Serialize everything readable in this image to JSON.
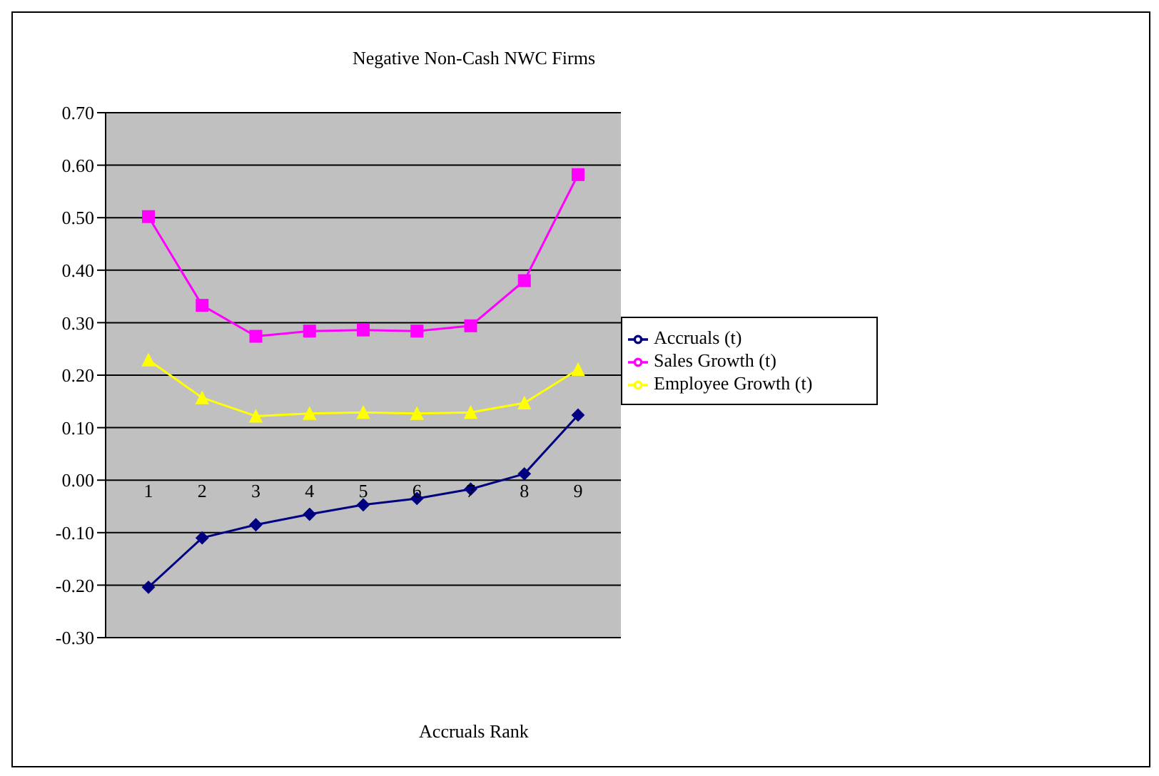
{
  "chart_data": {
    "type": "line",
    "title": "Negative Non-Cash NWC Firms",
    "xlabel": "Accruals Rank",
    "categories": [
      "1",
      "2",
      "3",
      "4",
      "5",
      "6",
      "7",
      "8",
      "9"
    ],
    "series": [
      {
        "name": "Accruals (t)",
        "color": "#000080",
        "marker": "diamond",
        "values": [
          -0.204,
          -0.11,
          -0.085,
          -0.065,
          -0.047,
          -0.035,
          -0.017,
          0.012,
          0.124
        ]
      },
      {
        "name": "Sales Growth (t)",
        "color": "#ff00ff",
        "marker": "square",
        "values": [
          0.502,
          0.333,
          0.274,
          0.284,
          0.286,
          0.284,
          0.294,
          0.38,
          0.582
        ]
      },
      {
        "name": "Employee Growth (t)",
        "color": "#ffff00",
        "marker": "triangle",
        "values": [
          0.229,
          0.157,
          0.122,
          0.127,
          0.129,
          0.127,
          0.129,
          0.147,
          0.211
        ]
      }
    ],
    "ylim": [
      -0.3,
      0.7
    ],
    "yticks": [
      {
        "value": -0.3,
        "label": "-0.30"
      },
      {
        "value": -0.2,
        "label": "-0.20"
      },
      {
        "value": -0.1,
        "label": "-0.10"
      },
      {
        "value": 0,
        "label": "0.00"
      },
      {
        "value": 0.1,
        "label": "0.10"
      },
      {
        "value": 0.2,
        "label": "0.20"
      },
      {
        "value": 0.3,
        "label": "0.30"
      },
      {
        "value": 0.4,
        "label": "0.40"
      },
      {
        "value": 0.5,
        "label": "0.50"
      },
      {
        "value": 0.6,
        "label": "0.60"
      },
      {
        "value": 0.7,
        "label": "0.70"
      }
    ],
    "grid": "y",
    "legend": "right"
  }
}
